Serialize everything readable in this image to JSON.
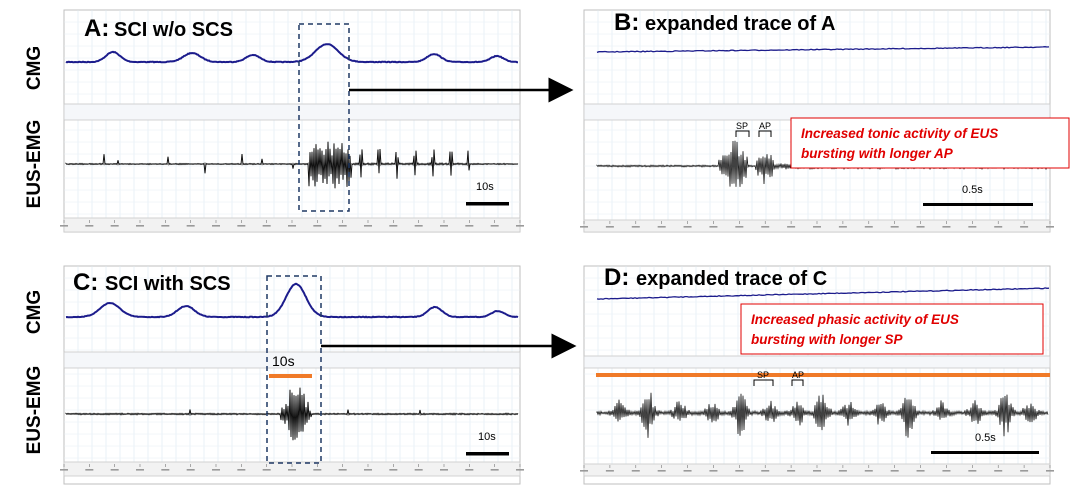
{
  "figure": {
    "panels": [
      {
        "id": "A",
        "letter": "A:",
        "title": "SCI w/o SCS",
        "top_label": "CMG",
        "bottom_label": "EUS-EMG",
        "scale_bar_label": "10s"
      },
      {
        "id": "B",
        "letter": "B:",
        "title": "expanded trace of A",
        "scale_bar_label": "0.5s",
        "markers": [
          "SP",
          "AP"
        ],
        "annotation": [
          "Increased tonic activity of EUS",
          "bursting with longer AP"
        ]
      },
      {
        "id": "C",
        "letter": "C:",
        "title": "SCI with SCS",
        "top_label": "CMG",
        "bottom_label": "EUS-EMG",
        "scale_bar_label": "10s",
        "stim_label": "10s"
      },
      {
        "id": "D",
        "letter": "D:",
        "title": "expanded trace of C",
        "scale_bar_label": "0.5s",
        "markers": [
          "SP",
          "AP"
        ],
        "annotation": [
          "Increased phasic activity of EUS",
          "bursting with longer SP"
        ]
      }
    ],
    "colors": {
      "cmg_trace": "#1c1c8c",
      "emg_trace": "#111111",
      "stim_bar": "#f07a28",
      "annotation_text": "#e00000",
      "annotation_border": "#e00000",
      "dashed_box": "#1f3864",
      "grid": "#dce9f2"
    }
  },
  "chart_data": [
    {
      "type": "line",
      "panel": "A",
      "title": "SCI w/o SCS",
      "series": [
        {
          "name": "CMG",
          "note": "slow pressure waves with small peaks; largest peak inside dashed box"
        },
        {
          "name": "EUS-EMG",
          "note": "sparse spikes, dense bursting after the large CMG peak"
        }
      ],
      "scale_bar": "10s"
    },
    {
      "type": "line",
      "panel": "B",
      "title": "expanded trace of A",
      "series": [
        {
          "name": "CMG",
          "note": "flat, slowly rising"
        },
        {
          "name": "EUS-EMG",
          "note": "tonic activity then bursting with long AP"
        }
      ],
      "scale_bar": "0.5s"
    },
    {
      "type": "line",
      "panel": "C",
      "title": "SCI with SCS",
      "series": [
        {
          "name": "CMG",
          "note": "periodic humps, large peak inside dashed box"
        },
        {
          "name": "EUS-EMG",
          "note": "single dense burst during stimulation"
        }
      ],
      "scale_bar": "10s"
    },
    {
      "type": "line",
      "panel": "D",
      "title": "expanded trace of C",
      "series": [
        {
          "name": "CMG",
          "note": "slowly rising"
        },
        {
          "name": "EUS-EMG",
          "note": "phasic bursting with long SP"
        }
      ],
      "scale_bar": "0.5s"
    }
  ]
}
